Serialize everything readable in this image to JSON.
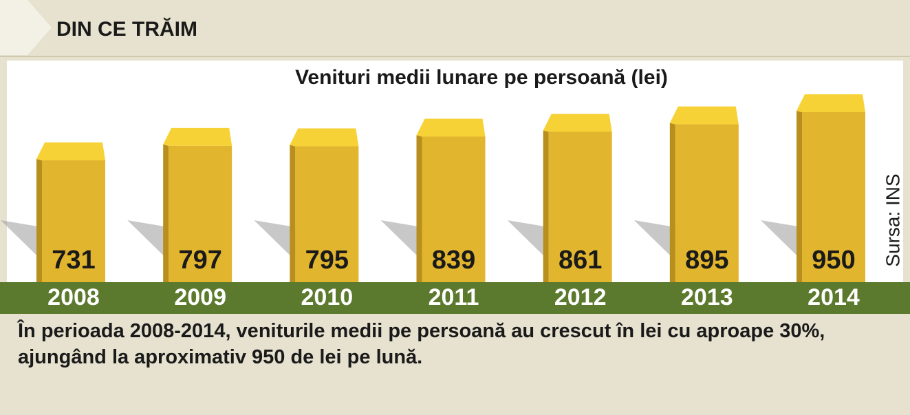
{
  "header": "DIN CE TRĂIM",
  "chart_data": {
    "type": "bar",
    "title": "Venituri medii lunare pe persoană (lei)",
    "categories": [
      "2008",
      "2009",
      "2010",
      "2011",
      "2012",
      "2013",
      "2014"
    ],
    "values": [
      731,
      797,
      795,
      839,
      861,
      895,
      950
    ],
    "color": "#e2b52e",
    "source": "Sursa: INS"
  },
  "caption": "În perioada 2008-2014, veniturile medii pe persoană au crescut în lei cu aproape 30%, ajungând la aproximativ 950 de lei pe lună."
}
